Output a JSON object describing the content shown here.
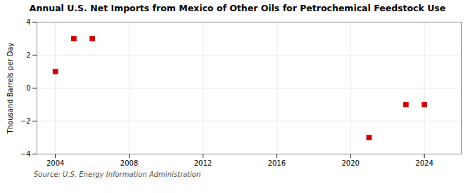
{
  "chart_data": {
    "type": "scatter",
    "title": "Annual U.S. Net Imports from Mexico of Other Oils for Petrochemical Feedstock Use",
    "ylabel": "Thousand Barrels per Day",
    "annotations": [
      "Source: U.S. Energy Information Administration"
    ],
    "x": [
      2004,
      2005,
      2006,
      2021,
      2023,
      2024
    ],
    "values": [
      1.0,
      3.0,
      3.0,
      -3.0,
      -1.0,
      -1.0
    ],
    "color": "#cc0000",
    "marker": "square",
    "xlim": [
      2003,
      2026
    ],
    "ylim": [
      -4,
      4
    ],
    "xticks": [
      2004,
      2008,
      2012,
      2016,
      2020,
      2024
    ],
    "yticks": [
      -4,
      -2,
      0,
      2,
      4
    ],
    "grid": true
  }
}
